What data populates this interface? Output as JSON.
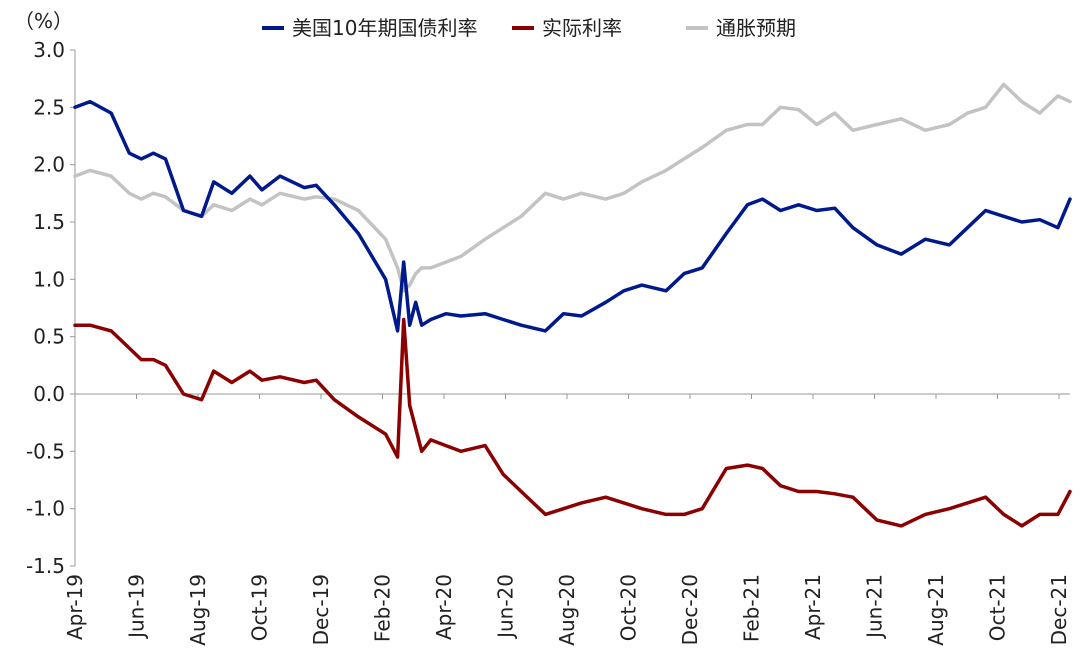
{
  "chart_data": {
    "type": "line",
    "title": "",
    "xlabel": "",
    "ylabel": "",
    "y_unit": "（%）",
    "ylim": [
      -1.5,
      3.0
    ],
    "yticks": [
      "3.0",
      "2.5",
      "2.0",
      "1.5",
      "1.0",
      "0.5",
      "0.0",
      "-0.5",
      "-1.0",
      "-1.5"
    ],
    "negative_tick_color": "#e00000",
    "x_tick_labels": [
      "Apr-19",
      "Jun-19",
      "Aug-19",
      "Oct-19",
      "Dec-19",
      "Feb-20",
      "Apr-20",
      "Jun-20",
      "Aug-20",
      "Oct-20",
      "Dec-20",
      "Feb-21",
      "Apr-21",
      "Jun-21",
      "Aug-21",
      "Oct-21",
      "Dec-21"
    ],
    "x_range": [
      "2019-04",
      "2022-01"
    ],
    "grid": false,
    "legend_position": "top",
    "series": [
      {
        "name": "美国10年期国债利率",
        "color": "#001a8c",
        "x": [
          0,
          0.5,
          1.2,
          1.8,
          2.2,
          2.6,
          3.0,
          3.6,
          4.2,
          4.6,
          5.2,
          5.8,
          6.2,
          6.8,
          7.6,
          8.0,
          8.6,
          9.4,
          10.3,
          10.7,
          10.9,
          11.1,
          11.3,
          11.5,
          11.8,
          12.3,
          12.8,
          13.6,
          14.2,
          14.8,
          15.6,
          16.2,
          16.8,
          17.6,
          18.2,
          18.8,
          19.6,
          20.2,
          20.8,
          21.6,
          22.3,
          22.8,
          23.4,
          24.0,
          24.6,
          25.2,
          25.8,
          26.6,
          27.4,
          28.2,
          29.0,
          29.6,
          30.2,
          30.8,
          31.4,
          32.0,
          32.6,
          33.0
        ],
        "values": [
          2.5,
          2.55,
          2.45,
          2.1,
          2.05,
          2.1,
          2.05,
          1.6,
          1.55,
          1.85,
          1.75,
          1.9,
          1.78,
          1.9,
          1.8,
          1.82,
          1.65,
          1.4,
          1.0,
          0.55,
          1.15,
          0.6,
          0.8,
          0.6,
          0.65,
          0.7,
          0.68,
          0.7,
          0.65,
          0.6,
          0.55,
          0.7,
          0.68,
          0.8,
          0.9,
          0.95,
          0.9,
          1.05,
          1.1,
          1.4,
          1.65,
          1.7,
          1.6,
          1.65,
          1.6,
          1.62,
          1.45,
          1.3,
          1.22,
          1.35,
          1.3,
          1.45,
          1.6,
          1.55,
          1.5,
          1.52,
          1.45,
          1.7
        ]
      },
      {
        "name": "实际利率",
        "color": "#8b0000",
        "x": [
          0,
          0.5,
          1.2,
          1.8,
          2.2,
          2.6,
          3.0,
          3.6,
          4.2,
          4.6,
          5.2,
          5.8,
          6.2,
          6.8,
          7.6,
          8.0,
          8.6,
          9.4,
          10.3,
          10.7,
          10.9,
          11.1,
          11.3,
          11.5,
          11.8,
          12.3,
          12.8,
          13.6,
          14.2,
          14.8,
          15.6,
          16.2,
          16.8,
          17.6,
          18.2,
          18.8,
          19.6,
          20.2,
          20.8,
          21.6,
          22.3,
          22.8,
          23.4,
          24.0,
          24.6,
          25.2,
          25.8,
          26.6,
          27.4,
          28.2,
          29.0,
          29.6,
          30.2,
          30.8,
          31.4,
          32.0,
          32.6,
          33.0
        ],
        "values": [
          0.6,
          0.6,
          0.55,
          0.4,
          0.3,
          0.3,
          0.25,
          0.0,
          -0.05,
          0.2,
          0.1,
          0.2,
          0.12,
          0.15,
          0.1,
          0.12,
          -0.05,
          -0.2,
          -0.35,
          -0.55,
          0.65,
          -0.1,
          -0.3,
          -0.5,
          -0.4,
          -0.45,
          -0.5,
          -0.45,
          -0.7,
          -0.85,
          -1.05,
          -1.0,
          -0.95,
          -0.9,
          -0.95,
          -1.0,
          -1.05,
          -1.05,
          -1.0,
          -0.65,
          -0.62,
          -0.65,
          -0.8,
          -0.85,
          -0.85,
          -0.87,
          -0.9,
          -1.1,
          -1.15,
          -1.05,
          -1.0,
          -0.95,
          -0.9,
          -1.05,
          -1.15,
          -1.05,
          -1.05,
          -0.85
        ]
      },
      {
        "name": "通胀预期",
        "color": "#c3c3c3",
        "x": [
          0,
          0.5,
          1.2,
          1.8,
          2.2,
          2.6,
          3.0,
          3.6,
          4.2,
          4.6,
          5.2,
          5.8,
          6.2,
          6.8,
          7.6,
          8.0,
          8.6,
          9.4,
          10.3,
          10.7,
          10.9,
          11.1,
          11.3,
          11.5,
          11.8,
          12.3,
          12.8,
          13.6,
          14.2,
          14.8,
          15.6,
          16.2,
          16.8,
          17.6,
          18.2,
          18.8,
          19.6,
          20.2,
          20.8,
          21.6,
          22.3,
          22.8,
          23.4,
          24.0,
          24.6,
          25.2,
          25.8,
          26.6,
          27.4,
          28.2,
          29.0,
          29.6,
          30.2,
          30.8,
          31.4,
          32.0,
          32.6,
          33.0
        ],
        "values": [
          1.9,
          1.95,
          1.9,
          1.75,
          1.7,
          1.75,
          1.72,
          1.6,
          1.55,
          1.65,
          1.6,
          1.7,
          1.65,
          1.75,
          1.7,
          1.72,
          1.7,
          1.6,
          1.35,
          1.1,
          0.9,
          0.95,
          1.05,
          1.1,
          1.1,
          1.15,
          1.2,
          1.35,
          1.45,
          1.55,
          1.75,
          1.7,
          1.75,
          1.7,
          1.75,
          1.85,
          1.95,
          2.05,
          2.15,
          2.3,
          2.35,
          2.35,
          2.5,
          2.48,
          2.35,
          2.45,
          2.3,
          2.35,
          2.4,
          2.3,
          2.35,
          2.45,
          2.5,
          2.7,
          2.55,
          2.45,
          2.6,
          2.55
        ]
      }
    ]
  }
}
